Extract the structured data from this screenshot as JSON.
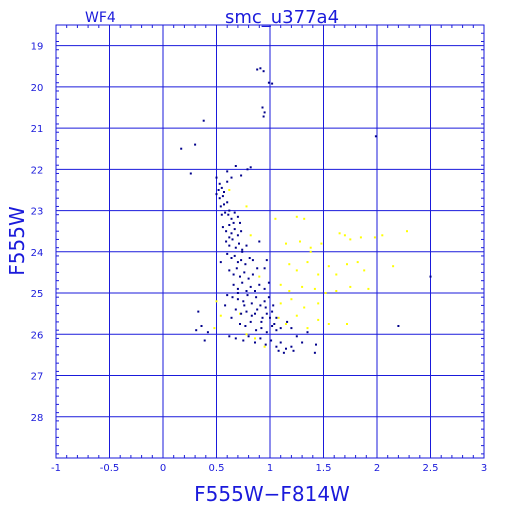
{
  "chart_data": {
    "type": "scatter",
    "title": "smc_u377a4",
    "subtitle": "WF4",
    "xlabel": "F555W−F814W",
    "ylabel": "F555W",
    "xlim": [
      -1,
      3
    ],
    "ylim": [
      29,
      18.5
    ],
    "y_inverted": true,
    "grid": true,
    "x_ticks": [
      "-1",
      "-0.5",
      "0",
      "0.5",
      "1",
      "1.5",
      "2",
      "2.5",
      "3"
    ],
    "y_ticks": [
      "19",
      "20",
      "21",
      "22",
      "23",
      "24",
      "25",
      "26",
      "27",
      "28"
    ],
    "colors": {
      "axis": "#1a1adb",
      "grid": "#1a1adb",
      "primary": "#00008b",
      "secondary": "#ffff00"
    },
    "series": [
      {
        "color": "#00008b",
        "points": [
          [
            0.88,
            19.58
          ],
          [
            0.91,
            19.55
          ],
          [
            0.94,
            19.62
          ],
          [
            0.99,
            19.9
          ],
          [
            1.02,
            19.92
          ],
          [
            0.93,
            20.5
          ],
          [
            0.95,
            20.62
          ],
          [
            0.94,
            20.72
          ],
          [
            0.38,
            20.82
          ],
          [
            0.17,
            21.5
          ],
          [
            0.3,
            21.4
          ],
          [
            1.99,
            21.2
          ],
          [
            0.26,
            22.1
          ],
          [
            0.68,
            21.92
          ],
          [
            0.82,
            21.95
          ],
          [
            0.5,
            22.2
          ],
          [
            0.53,
            22.35
          ],
          [
            0.52,
            22.5
          ],
          [
            0.55,
            22.45
          ],
          [
            0.6,
            22.3
          ],
          [
            0.64,
            22.2
          ],
          [
            0.73,
            22.15
          ],
          [
            0.5,
            22.6
          ],
          [
            0.53,
            22.7
          ],
          [
            0.56,
            22.65
          ],
          [
            0.54,
            22.9
          ],
          [
            0.57,
            22.85
          ],
          [
            0.6,
            22.8
          ],
          [
            0.55,
            23.1
          ],
          [
            0.58,
            23.05
          ],
          [
            0.61,
            23.1
          ],
          [
            0.64,
            23.2
          ],
          [
            0.62,
            23.0
          ],
          [
            0.67,
            23.05
          ],
          [
            0.72,
            23.3
          ],
          [
            0.56,
            23.4
          ],
          [
            0.59,
            23.5
          ],
          [
            0.62,
            23.35
          ],
          [
            0.64,
            23.55
          ],
          [
            0.67,
            23.45
          ],
          [
            0.7,
            23.6
          ],
          [
            0.73,
            23.5
          ],
          [
            0.59,
            23.75
          ],
          [
            0.62,
            23.85
          ],
          [
            0.65,
            23.7
          ],
          [
            0.68,
            23.9
          ],
          [
            0.71,
            23.8
          ],
          [
            0.74,
            23.95
          ],
          [
            0.78,
            23.85
          ],
          [
            0.6,
            24.05
          ],
          [
            0.64,
            24.15
          ],
          [
            0.67,
            24.1
          ],
          [
            0.7,
            24.25
          ],
          [
            0.73,
            24.2
          ],
          [
            0.77,
            24.3
          ],
          [
            0.81,
            24.15
          ],
          [
            0.54,
            24.25
          ],
          [
            0.62,
            24.45
          ],
          [
            0.66,
            24.55
          ],
          [
            0.69,
            24.4
          ],
          [
            0.72,
            24.6
          ],
          [
            0.76,
            24.5
          ],
          [
            0.8,
            24.65
          ],
          [
            0.84,
            24.55
          ],
          [
            0.88,
            24.4
          ],
          [
            0.66,
            24.8
          ],
          [
            0.7,
            24.9
          ],
          [
            0.74,
            24.75
          ],
          [
            0.78,
            24.95
          ],
          [
            0.82,
            24.85
          ],
          [
            0.86,
            24.95
          ],
          [
            0.9,
            24.8
          ],
          [
            0.95,
            24.9
          ],
          [
            0.99,
            24.75
          ],
          [
            0.6,
            25.05
          ],
          [
            0.65,
            25.1
          ],
          [
            0.7,
            25.15
          ],
          [
            0.75,
            25.2
          ],
          [
            0.79,
            25.05
          ],
          [
            0.83,
            25.25
          ],
          [
            0.87,
            25.1
          ],
          [
            0.91,
            25.3
          ],
          [
            0.95,
            25.2
          ],
          [
            0.99,
            25.1
          ],
          [
            1.03,
            25.3
          ],
          [
            0.68,
            25.4
          ],
          [
            0.73,
            25.5
          ],
          [
            0.78,
            25.45
          ],
          [
            0.83,
            25.55
          ],
          [
            0.88,
            25.4
          ],
          [
            0.93,
            25.6
          ],
          [
            0.97,
            25.5
          ],
          [
            1.02,
            25.45
          ],
          [
            1.06,
            25.6
          ],
          [
            0.72,
            25.75
          ],
          [
            0.77,
            25.8
          ],
          [
            0.82,
            25.7
          ],
          [
            0.87,
            25.9
          ],
          [
            0.92,
            25.85
          ],
          [
            0.97,
            25.95
          ],
          [
            1.02,
            25.8
          ],
          [
            1.06,
            25.9
          ],
          [
            1.1,
            25.85
          ],
          [
            0.62,
            26.05
          ],
          [
            0.68,
            26.1
          ],
          [
            0.75,
            26.15
          ],
          [
            0.8,
            26.05
          ],
          [
            0.86,
            26.2
          ],
          [
            0.91,
            26.1
          ],
          [
            0.96,
            26.25
          ],
          [
            1.01,
            26.15
          ],
          [
            1.06,
            26.3
          ],
          [
            1.1,
            26.2
          ],
          [
            1.15,
            26.35
          ],
          [
            1.08,
            26.4
          ],
          [
            1.13,
            26.45
          ],
          [
            1.2,
            26.3
          ],
          [
            0.33,
            25.45
          ],
          [
            0.36,
            25.8
          ],
          [
            0.39,
            26.15
          ],
          [
            0.42,
            25.95
          ],
          [
            0.31,
            25.9
          ],
          [
            1.16,
            25.7
          ],
          [
            1.2,
            25.85
          ],
          [
            1.25,
            26.05
          ],
          [
            1.3,
            26.2
          ],
          [
            1.22,
            26.4
          ],
          [
            1.35,
            25.95
          ],
          [
            1.43,
            26.25
          ],
          [
            1.42,
            26.45
          ],
          [
            2.2,
            25.8
          ],
          [
            2.5,
            24.6
          ],
          [
            0.95,
            24.4
          ],
          [
            0.97,
            24.2
          ],
          [
            0.9,
            23.75
          ],
          [
            0.84,
            24.2
          ],
          [
            0.74,
            24.0
          ],
          [
            0.86,
            25.5
          ],
          [
            0.92,
            25.7
          ],
          [
            0.96,
            25.35
          ],
          [
            1.0,
            25.6
          ],
          [
            1.04,
            25.75
          ],
          [
            0.58,
            25.3
          ],
          [
            0.64,
            25.6
          ],
          [
            0.7,
            25.0
          ],
          [
            0.76,
            25.3
          ],
          [
            0.62,
            23.65
          ],
          [
            0.66,
            23.3
          ],
          [
            0.7,
            23.15
          ],
          [
            0.57,
            22.55
          ],
          [
            0.6,
            22.05
          ],
          [
            0.79,
            22.0
          ]
        ]
      },
      {
        "color": "#ffff00",
        "points": [
          [
            0.62,
            22.5
          ],
          [
            0.78,
            22.9
          ],
          [
            0.82,
            23.6
          ],
          [
            1.05,
            23.2
          ],
          [
            1.25,
            23.15
          ],
          [
            1.32,
            23.2
          ],
          [
            1.15,
            23.8
          ],
          [
            1.28,
            23.75
          ],
          [
            1.38,
            23.9
          ],
          [
            1.48,
            23.8
          ],
          [
            1.18,
            24.3
          ],
          [
            1.25,
            24.45
          ],
          [
            1.35,
            24.25
          ],
          [
            1.45,
            24.55
          ],
          [
            1.55,
            24.35
          ],
          [
            1.62,
            24.55
          ],
          [
            1.1,
            24.8
          ],
          [
            1.18,
            24.95
          ],
          [
            1.3,
            24.85
          ],
          [
            1.42,
            24.9
          ],
          [
            1.52,
            25.0
          ],
          [
            1.1,
            25.25
          ],
          [
            1.2,
            25.15
          ],
          [
            1.32,
            25.35
          ],
          [
            1.45,
            25.25
          ],
          [
            1.08,
            25.6
          ],
          [
            1.15,
            25.75
          ],
          [
            1.25,
            25.55
          ],
          [
            1.35,
            25.85
          ],
          [
            1.45,
            25.65
          ],
          [
            1.55,
            25.75
          ],
          [
            1.7,
            23.6
          ],
          [
            1.75,
            23.7
          ],
          [
            1.85,
            23.65
          ],
          [
            1.98,
            23.65
          ],
          [
            2.05,
            23.6
          ],
          [
            2.28,
            23.5
          ],
          [
            1.72,
            24.3
          ],
          [
            1.82,
            24.25
          ],
          [
            1.88,
            24.45
          ],
          [
            2.15,
            24.35
          ],
          [
            1.62,
            24.95
          ],
          [
            1.75,
            24.85
          ],
          [
            1.92,
            24.9
          ],
          [
            1.72,
            25.75
          ],
          [
            0.86,
            26.1
          ],
          [
            0.95,
            26.3
          ],
          [
            0.78,
            26.0
          ],
          [
            0.72,
            25.5
          ],
          [
            0.5,
            25.2
          ],
          [
            0.54,
            25.55
          ],
          [
            0.48,
            25.85
          ],
          [
            1.38,
            24.0
          ],
          [
            1.65,
            23.55
          ],
          [
            0.9,
            24.6
          ]
        ]
      }
    ]
  }
}
